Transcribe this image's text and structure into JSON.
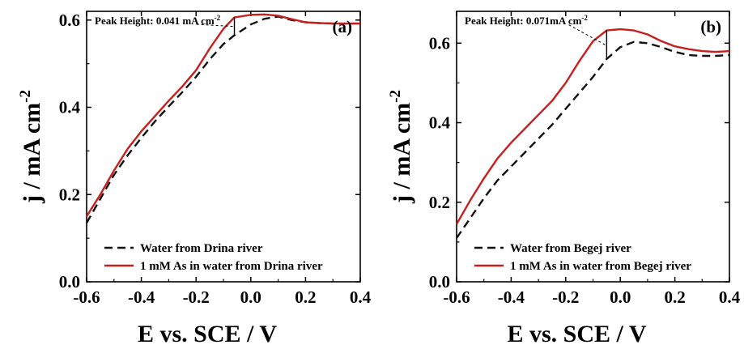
{
  "chart_data": [
    {
      "type": "line",
      "panel_label": "(a)",
      "xlabel": "E vs. SCE / V",
      "ylabel": "j / mA cm-2",
      "xlim": [
        -0.6,
        0.4
      ],
      "ylim": [
        0.0,
        0.62
      ],
      "xticks": [
        -0.6,
        -0.4,
        -0.2,
        0.0,
        0.2,
        0.4
      ],
      "xtick_labels": [
        "-0.6",
        "-0.4",
        "-0.2",
        "0.0",
        "0.2",
        "0.4"
      ],
      "yticks": [
        0.0,
        0.2,
        0.4,
        0.6
      ],
      "ytick_labels": [
        "0.0",
        "0.2",
        "0.4",
        "0.6"
      ],
      "grid": false,
      "legend_position": "bottom-right",
      "annotation": {
        "text": "Peak Height: 0.041 mA cm",
        "superscript": "-2",
        "x": -0.06,
        "y_low": 0.565,
        "y_high": 0.606
      },
      "series": [
        {
          "name": "Water from Drina river",
          "color": "#111111",
          "style": "dashed",
          "x": [
            -0.6,
            -0.55,
            -0.5,
            -0.45,
            -0.4,
            -0.35,
            -0.3,
            -0.25,
            -0.2,
            -0.15,
            -0.1,
            -0.06,
            0.0,
            0.05,
            0.1,
            0.15,
            0.2,
            0.25,
            0.3,
            0.35,
            0.4
          ],
          "y": [
            0.135,
            0.19,
            0.245,
            0.29,
            0.33,
            0.368,
            0.402,
            0.435,
            0.47,
            0.51,
            0.545,
            0.565,
            0.59,
            0.603,
            0.608,
            0.6,
            0.595,
            0.593,
            0.592,
            0.592,
            0.592
          ]
        },
        {
          "name": "1 mM As in water from Drina river",
          "color": "#c81e1e",
          "style": "solid",
          "x": [
            -0.6,
            -0.55,
            -0.5,
            -0.45,
            -0.4,
            -0.35,
            -0.3,
            -0.25,
            -0.2,
            -0.15,
            -0.1,
            -0.06,
            0.0,
            0.05,
            0.1,
            0.15,
            0.2,
            0.25,
            0.3,
            0.35,
            0.4
          ],
          "y": [
            0.15,
            0.2,
            0.255,
            0.305,
            0.345,
            0.38,
            0.415,
            0.448,
            0.485,
            0.535,
            0.58,
            0.606,
            0.612,
            0.613,
            0.61,
            0.602,
            0.595,
            0.593,
            0.592,
            0.592,
            0.592
          ]
        }
      ]
    },
    {
      "type": "line",
      "panel_label": "(b)",
      "xlabel": "E vs. SCE / V",
      "ylabel": "j / mA cm-2",
      "xlim": [
        -0.6,
        0.4
      ],
      "ylim": [
        0.0,
        0.68
      ],
      "xticks": [
        -0.6,
        -0.4,
        -0.2,
        0.0,
        0.2,
        0.4
      ],
      "xtick_labels": [
        "-0.6",
        "-0.4",
        "-0.2",
        "0.0",
        "0.2",
        "0.4"
      ],
      "yticks": [
        0.0,
        0.2,
        0.4,
        0.6
      ],
      "ytick_labels": [
        "0.0",
        "0.2",
        "0.4",
        "0.6"
      ],
      "grid": false,
      "legend_position": "bottom-right",
      "annotation": {
        "text": "Peak Height: 0.071mA cm",
        "superscript": "-2",
        "x": -0.05,
        "y_low": 0.56,
        "y_high": 0.632
      },
      "series": [
        {
          "name": "Water from Begej river",
          "color": "#111111",
          "style": "dashed",
          "x": [
            -0.6,
            -0.55,
            -0.5,
            -0.45,
            -0.4,
            -0.35,
            -0.3,
            -0.25,
            -0.2,
            -0.15,
            -0.1,
            -0.05,
            0.0,
            0.05,
            0.1,
            0.15,
            0.2,
            0.25,
            0.3,
            0.35,
            0.4
          ],
          "y": [
            0.11,
            0.16,
            0.21,
            0.255,
            0.29,
            0.325,
            0.36,
            0.395,
            0.435,
            0.475,
            0.515,
            0.56,
            0.59,
            0.603,
            0.6,
            0.59,
            0.578,
            0.57,
            0.568,
            0.568,
            0.57
          ]
        },
        {
          "name": "1 mM As in water from Begej river",
          "color": "#c81e1e",
          "style": "solid",
          "x": [
            -0.6,
            -0.55,
            -0.5,
            -0.45,
            -0.4,
            -0.35,
            -0.3,
            -0.25,
            -0.2,
            -0.15,
            -0.1,
            -0.05,
            0.0,
            0.05,
            0.1,
            0.15,
            0.2,
            0.25,
            0.3,
            0.35,
            0.4
          ],
          "y": [
            0.145,
            0.205,
            0.26,
            0.31,
            0.35,
            0.385,
            0.42,
            0.455,
            0.5,
            0.555,
            0.605,
            0.632,
            0.635,
            0.632,
            0.622,
            0.605,
            0.592,
            0.585,
            0.58,
            0.578,
            0.58
          ]
        }
      ]
    }
  ]
}
